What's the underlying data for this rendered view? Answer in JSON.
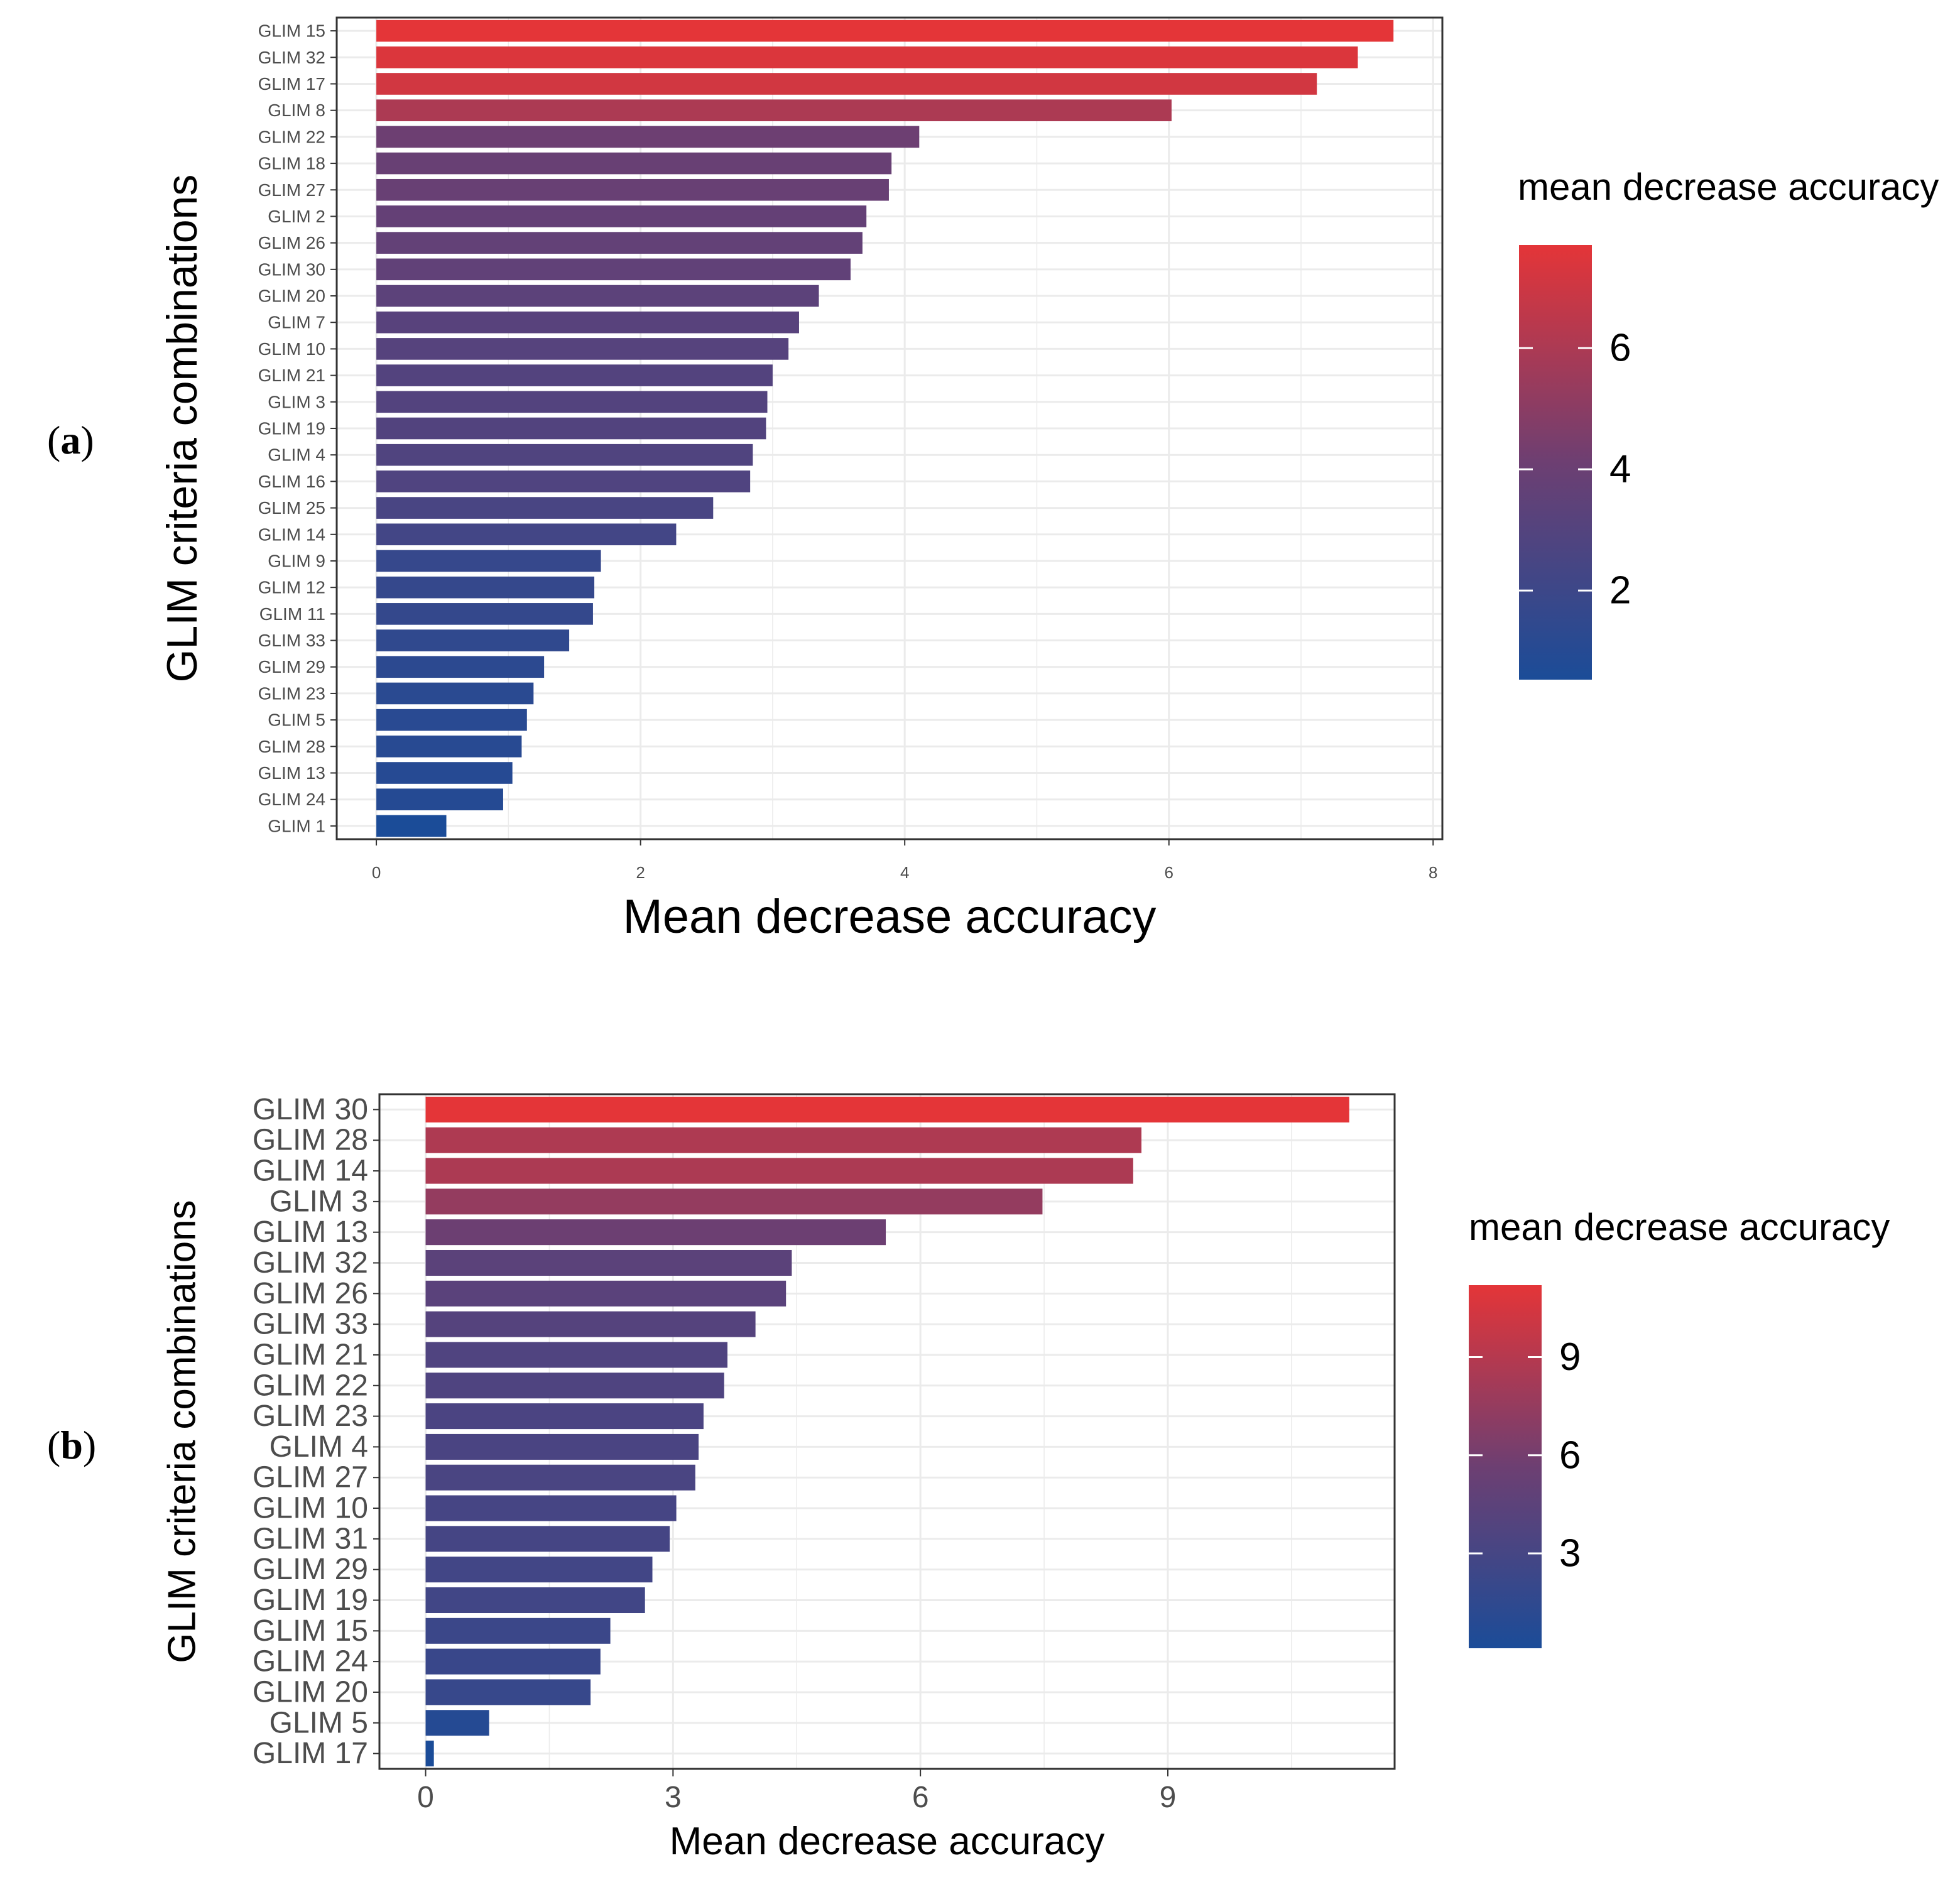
{
  "chart_data": [
    {
      "panel_label": "a",
      "type": "bar",
      "orientation": "horizontal",
      "categories": [
        "GLIM 15",
        "GLIM 32",
        "GLIM 17",
        "GLIM 8",
        "GLIM 22",
        "GLIM 18",
        "GLIM 27",
        "GLIM 2",
        "GLIM 26",
        "GLIM 30",
        "GLIM 20",
        "GLIM 7",
        "GLIM 10",
        "GLIM 21",
        "GLIM 3",
        "GLIM 19",
        "GLIM 4",
        "GLIM 16",
        "GLIM 25",
        "GLIM 14",
        "GLIM 9",
        "GLIM 12",
        "GLIM 11",
        "GLIM 33",
        "GLIM 29",
        "GLIM 23",
        "GLIM 5",
        "GLIM 28",
        "GLIM 13",
        "GLIM 24",
        "GLIM 1"
      ],
      "values": [
        7.7,
        7.43,
        7.12,
        6.02,
        4.11,
        3.9,
        3.88,
        3.71,
        3.68,
        3.59,
        3.35,
        3.2,
        3.12,
        3.0,
        2.96,
        2.95,
        2.85,
        2.83,
        2.55,
        2.27,
        1.7,
        1.65,
        1.64,
        1.46,
        1.27,
        1.19,
        1.14,
        1.1,
        1.03,
        0.96,
        0.53
      ],
      "xlabel": "Mean decrease accuracy",
      "ylabel": "GLIM criteria combinations",
      "xlim": [
        -0.3,
        8.07
      ],
      "xticks": [
        "0",
        "2",
        "4",
        "6",
        "8"
      ],
      "grid": true,
      "legend": {
        "title": "mean decrease accuracy",
        "position": "right",
        "range": [
          0.53,
          7.7
        ],
        "ticks": [
          "2",
          "4",
          "6"
        ]
      },
      "colors": {
        "low": "#1b4c98",
        "mid": "#6d3f72",
        "high": "#e43538"
      }
    },
    {
      "panel_label": "b",
      "type": "bar",
      "orientation": "horizontal",
      "categories": [
        "GLIM 30",
        "GLIM 28",
        "GLIM 14",
        "GLIM 3",
        "GLIM 13",
        "GLIM 32",
        "GLIM 26",
        "GLIM 33",
        "GLIM 21",
        "GLIM 22",
        "GLIM 23",
        "GLIM 4",
        "GLIM 27",
        "GLIM 10",
        "GLIM 31",
        "GLIM 29",
        "GLIM 19",
        "GLIM 15",
        "GLIM 24",
        "GLIM 20",
        "GLIM 5",
        "GLIM 17"
      ],
      "values": [
        11.2,
        8.68,
        8.58,
        7.48,
        5.58,
        4.44,
        4.37,
        4.0,
        3.66,
        3.62,
        3.37,
        3.31,
        3.27,
        3.04,
        2.96,
        2.75,
        2.66,
        2.24,
        2.12,
        2.0,
        0.77,
        0.1
      ],
      "xlabel": "Mean decrease accuracy",
      "ylabel": "GLIM criteria combinations",
      "xlim": [
        -0.56,
        11.75
      ],
      "xticks": [
        "0",
        "3",
        "6",
        "9"
      ],
      "grid": true,
      "legend": {
        "title": "mean decrease accuracy",
        "position": "right",
        "range": [
          0.1,
          11.2
        ],
        "ticks": [
          "3",
          "6",
          "9"
        ]
      },
      "colors": {
        "low": "#1b4c98",
        "mid": "#6d3f72",
        "high": "#e43538"
      }
    }
  ]
}
